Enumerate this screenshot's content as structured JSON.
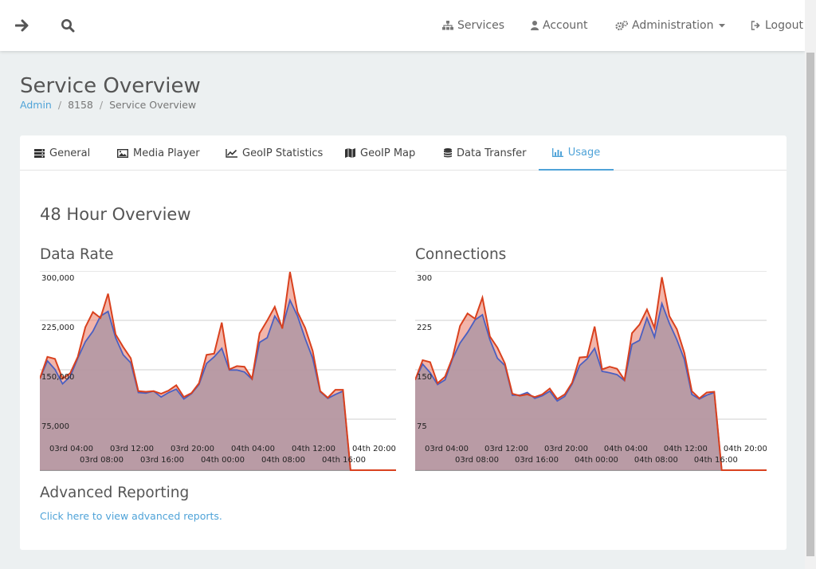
{
  "topbar": {
    "nav": [
      {
        "label": "Services",
        "icon": "sitemap-icon"
      },
      {
        "label": "Account",
        "icon": "user-icon"
      },
      {
        "label": "Administration",
        "icon": "cogs-icon"
      },
      {
        "label": "Logout",
        "icon": "sign-out-icon"
      }
    ]
  },
  "page": {
    "title": "Service Overview",
    "breadcrumb": [
      "Admin",
      "8158",
      "Service Overview"
    ]
  },
  "tabs": [
    {
      "label": "General",
      "icon": "server-icon"
    },
    {
      "label": "Media Player",
      "icon": "image-icon"
    },
    {
      "label": "GeoIP Statistics",
      "icon": "line-chart-icon"
    },
    {
      "label": "GeoIP Map",
      "icon": "map-icon"
    },
    {
      "label": "Data Transfer",
      "icon": "database-icon"
    },
    {
      "label": "Usage",
      "icon": "bar-chart-icon",
      "active": true
    }
  ],
  "main": {
    "overview_title": "48 Hour Overview",
    "advanced_title": "Advanced Reporting",
    "advanced_link": "Click here to view advanced reports."
  },
  "colors": {
    "accent": "#4fa3d8",
    "series_red": "#d9411e",
    "series_blue": "#4a5fc1"
  },
  "chart_data": [
    {
      "type": "area",
      "title": "Data Rate",
      "ylim": [
        0,
        300000
      ],
      "y_ticks": [
        "300,000",
        "225,000",
        "150,000",
        "75,000"
      ],
      "y_tick_values": [
        300000,
        225000,
        150000,
        75000
      ],
      "x_ticks_row1": [
        "03rd 04:00",
        "03rd 12:00",
        "03rd 20:00",
        "04th 04:00",
        "04th 12:00",
        "04th 20:00"
      ],
      "x_ticks_row2": [
        "03rd 08:00",
        "03rd 16:00",
        "04th 00:00",
        "04th 08:00",
        "04th 16:00"
      ],
      "grid": true,
      "series": [
        {
          "values": [
            139000,
            172000,
            169000,
            139000,
            147000,
            172000,
            217000,
            240000,
            231000,
            268000,
            206000,
            187000,
            170000,
            120000,
            119000,
            120000,
            116000,
            121000,
            129000,
            111000,
            117000,
            132000,
            175000,
            177000,
            224000,
            153000,
            158000,
            157000,
            139000,
            208000,
            227000,
            248000,
            215000,
            301000,
            240000,
            216000,
            181000,
            120000,
            110000,
            122000,
            122000,
            0,
            0,
            0,
            0,
            0,
            0,
            0
          ]
        },
        {
          "values": [
            139000,
            166000,
            153000,
            131000,
            142000,
            170000,
            195000,
            211000,
            234000,
            241000,
            201000,
            175000,
            163000,
            118000,
            117000,
            120000,
            111000,
            118000,
            123000,
            108000,
            116000,
            130000,
            162000,
            172000,
            185000,
            152000,
            152000,
            149000,
            138000,
            194000,
            201000,
            234000,
            217000,
            258000,
            234000,
            200000,
            170000,
            119000,
            109000,
            115000,
            120000,
            0,
            0,
            0,
            0,
            0,
            0,
            0
          ]
        }
      ]
    },
    {
      "type": "area",
      "title": "Connections",
      "ylim": [
        0,
        300
      ],
      "y_ticks": [
        "300",
        "225",
        "150",
        "75"
      ],
      "y_tick_values": [
        300,
        225,
        150,
        75
      ],
      "x_ticks_row1": [
        "03rd 04:00",
        "03rd 12:00",
        "03rd 20:00",
        "04th 04:00",
        "04th 12:00",
        "04th 20:00"
      ],
      "x_ticks_row2": [
        "03rd 08:00",
        "03rd 16:00",
        "04th 00:00",
        "04th 08:00",
        "04th 16:00"
      ],
      "grid": true,
      "series": [
        {
          "values": [
            137,
            167,
            164,
            132,
            142,
            171,
            219,
            238,
            230,
            262,
            203,
            186,
            162,
            116,
            113,
            115,
            111,
            115,
            124,
            108,
            115,
            133,
            171,
            172,
            218,
            153,
            157,
            154,
            137,
            208,
            221,
            244,
            216,
            293,
            234,
            214,
            178,
            120,
            109,
            118,
            119,
            0,
            0,
            0,
            0,
            0,
            0,
            0
          ]
        },
        {
          "values": [
            137,
            161,
            148,
            130,
            137,
            169,
            193,
            209,
            228,
            236,
            198,
            170,
            159,
            114,
            114,
            118,
            109,
            113,
            120,
            105,
            112,
            131,
            159,
            169,
            185,
            150,
            148,
            145,
            136,
            191,
            197,
            231,
            202,
            253,
            223,
            198,
            168,
            115,
            108,
            114,
            118,
            0,
            0,
            0,
            0,
            0,
            0,
            0
          ]
        }
      ]
    }
  ]
}
